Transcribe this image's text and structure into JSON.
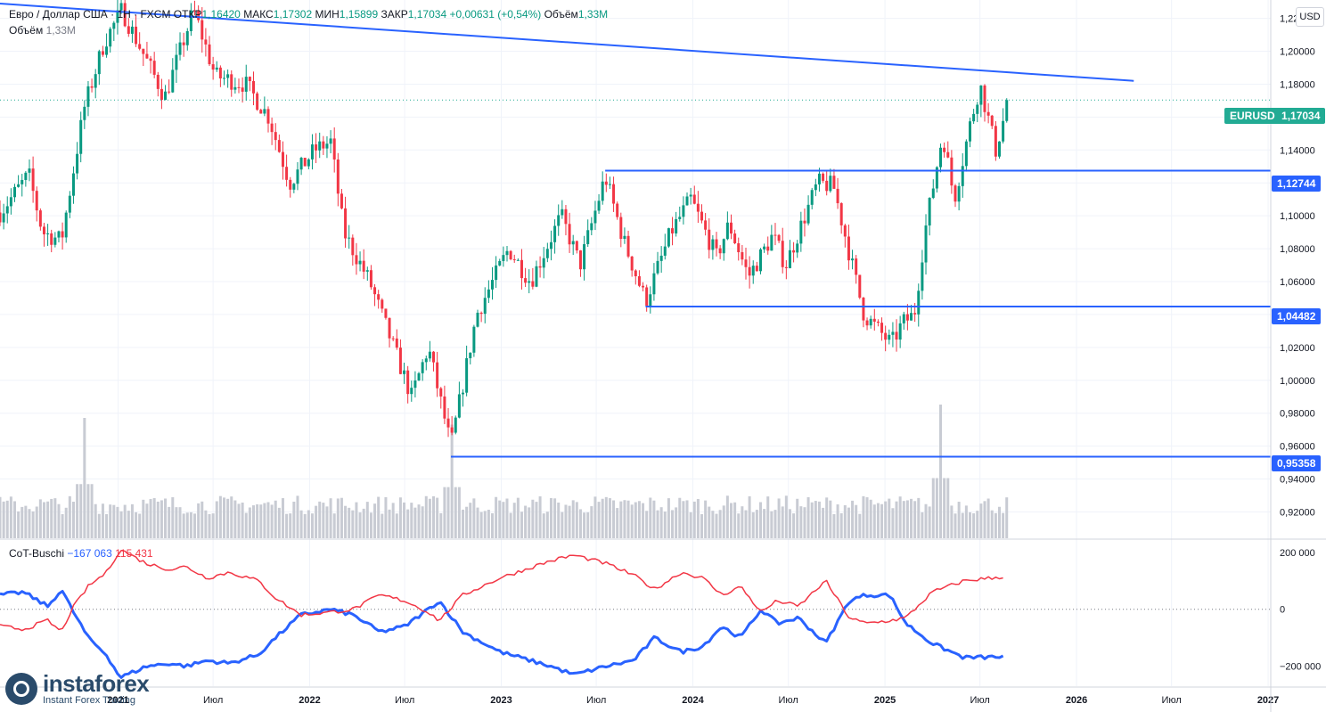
{
  "header": {
    "pair": "Евро / Доллар США",
    "timeframe": "1Н",
    "exchange": "FXCM",
    "open_label": "ОТКР",
    "open": "1,16420",
    "high_label": "МАКС",
    "high": "1,17302",
    "low_label": "МИН",
    "low": "1,15899",
    "close_label": "ЗАКР",
    "close": "1,17034",
    "change": "+0,00631 (+0,54%)",
    "volume_label": "Объём",
    "volume": "1,33M"
  },
  "volume_legend": {
    "label": "Объём",
    "value": "1,33M"
  },
  "currency_button": "USD",
  "cot_legend": {
    "name": "CoT-Buschi",
    "blue_value": "−167 063",
    "red_value": "115 431"
  },
  "price_tags": {
    "symbol": "EURUSD",
    "current": "1,17034",
    "levels": [
      "1,12744",
      "1,04482",
      "0,95358"
    ]
  },
  "branding": {
    "name": "instaforex",
    "tagline": "Instant Forex Trading"
  },
  "colors": {
    "up": "#089981",
    "down": "#f23645",
    "level": "#2962ff",
    "cot_blue": "#2962ff",
    "cot_red": "#f23645",
    "volume": "#c8cbd3",
    "current_tag": "#22ab94"
  },
  "chart_data": [
    {
      "type": "candlestick",
      "title": "Евро / Доллар США · 1Н · FXCM",
      "y_axis_ticks": [
        "1,22000",
        "1,20000",
        "1,18000",
        "1,16000",
        "1,14000",
        "1,12000",
        "1,10000",
        "1,08000",
        "1,06000",
        "1,04000",
        "1,02000",
        "1,00000",
        "0,98000",
        "0,96000",
        "0,94000",
        "0,92000"
      ],
      "ylim": [
        0.904,
        1.229
      ],
      "x_axis_labels": [
        "2021",
        "Июл",
        "2022",
        "Июл",
        "2023",
        "Июл",
        "2024",
        "Июл",
        "2025",
        "Июл",
        "2026",
        "Июл",
        "2027"
      ],
      "x_axis_dates": [
        "2021-01-01",
        "2021-07-01",
        "2022-01-01",
        "2022-07-01",
        "2023-01-01",
        "2023-07-01",
        "2024-01-01",
        "2024-07-01",
        "2025-01-01",
        "2025-07-01",
        "2026-01-01",
        "2026-07-01",
        "2027-01-01"
      ],
      "xlim": [
        "2020-05-21",
        "2027-01-06"
      ],
      "path_points": [
        [
          "2020-05-21",
          1.102
        ],
        [
          "2020-07-15",
          1.125
        ],
        [
          "2020-08-10",
          1.09
        ],
        [
          "2020-09-15",
          1.085
        ],
        [
          "2020-10-28",
          1.165
        ],
        [
          "2020-12-05",
          1.205
        ],
        [
          "2021-01-08",
          1.225
        ],
        [
          "2021-03-31",
          1.172
        ],
        [
          "2021-05-25",
          1.225
        ],
        [
          "2021-07-05",
          1.185
        ],
        [
          "2021-09-01",
          1.18
        ],
        [
          "2021-10-15",
          1.16
        ],
        [
          "2021-11-24",
          1.12
        ],
        [
          "2022-01-10",
          1.14
        ],
        [
          "2022-02-10",
          1.145
        ],
        [
          "2022-03-07",
          1.09
        ],
        [
          "2022-04-25",
          1.06
        ],
        [
          "2022-07-14",
          0.99
        ],
        [
          "2022-08-15",
          1.02
        ],
        [
          "2022-09-27",
          0.96
        ],
        [
          "2022-11-15",
          1.04
        ],
        [
          "2023-01-15",
          1.08
        ],
        [
          "2023-02-26",
          1.06
        ],
        [
          "2023-04-25",
          1.1
        ],
        [
          "2023-05-31",
          1.07
        ],
        [
          "2023-07-18",
          1.124
        ],
        [
          "2023-08-22",
          1.085
        ],
        [
          "2023-10-03",
          1.048
        ],
        [
          "2023-11-20",
          1.09
        ],
        [
          "2023-12-28",
          1.11
        ],
        [
          "2024-02-15",
          1.075
        ],
        [
          "2024-03-10",
          1.095
        ],
        [
          "2024-04-16",
          1.063
        ],
        [
          "2024-06-01",
          1.088
        ],
        [
          "2024-06-26",
          1.07
        ],
        [
          "2024-08-26",
          1.12
        ],
        [
          "2024-09-25",
          1.118
        ],
        [
          "2024-10-23",
          1.08
        ],
        [
          "2024-11-22",
          1.04
        ],
        [
          "2025-01-13",
          1.022
        ],
        [
          "2025-02-04",
          1.035
        ],
        [
          "2025-02-26",
          1.04
        ],
        [
          "2025-03-18",
          1.09
        ],
        [
          "2025-04-21",
          1.15
        ],
        [
          "2025-05-13",
          1.11
        ],
        [
          "2025-06-12",
          1.155
        ],
        [
          "2025-07-01",
          1.18
        ],
        [
          "2025-07-31",
          1.14
        ],
        [
          "2025-08-24",
          1.17
        ]
      ],
      "horizontal_levels": [
        {
          "value": 1.12744,
          "from": "2023-07-18"
        },
        {
          "value": 1.04482,
          "from": "2023-10-03"
        },
        {
          "value": 0.95358,
          "from": "2022-09-27"
        }
      ],
      "trend_line": [
        [
          "2020-05-21",
          1.229
        ],
        [
          "2026-04-20",
          1.182
        ]
      ],
      "current_price": 1.17034
    },
    {
      "type": "bar",
      "title": "Объём",
      "volume_spikes": [
        [
          "2020-10-28",
          0.9
        ],
        [
          "2022-09-27",
          0.85
        ],
        [
          "2025-04-15",
          1.0
        ]
      ]
    },
    {
      "type": "line",
      "title": "CoT-Buschi",
      "y_axis_ticks": [
        "200 000",
        "0",
        "−200 000"
      ],
      "ylim": [
        -270000,
        240000
      ],
      "series": [
        {
          "name": "−167 063",
          "color": "#2962ff",
          "points": [
            [
              "2020-05-21",
              50000
            ],
            [
              "2020-07-05",
              60000
            ],
            [
              "2020-08-20",
              10000
            ],
            [
              "2020-09-15",
              70000
            ],
            [
              "2020-10-05",
              0
            ],
            [
              "2020-11-05",
              -100000
            ],
            [
              "2020-12-10",
              -160000
            ],
            [
              "2021-01-05",
              -240000
            ],
            [
              "2021-02-25",
              -200000
            ],
            [
              "2021-04-10",
              -190000
            ],
            [
              "2021-05-10",
              -200000
            ],
            [
              "2021-06-20",
              -180000
            ],
            [
              "2021-08-01",
              -190000
            ],
            [
              "2021-09-25",
              -160000
            ],
            [
              "2021-10-28",
              -100000
            ],
            [
              "2021-12-15",
              -20000
            ],
            [
              "2022-02-10",
              0
            ],
            [
              "2022-03-25",
              -20000
            ],
            [
              "2022-05-15",
              -80000
            ],
            [
              "2022-07-01",
              -60000
            ],
            [
              "2022-08-15",
              0
            ],
            [
              "2022-09-05",
              30000
            ],
            [
              "2022-10-20",
              -80000
            ],
            [
              "2022-12-30",
              -150000
            ],
            [
              "2023-04-05",
              -200000
            ],
            [
              "2023-05-20",
              -230000
            ],
            [
              "2023-07-20",
              -200000
            ],
            [
              "2023-09-10",
              -180000
            ],
            [
              "2023-10-20",
              -100000
            ],
            [
              "2023-12-10",
              -150000
            ],
            [
              "2024-01-20",
              -130000
            ],
            [
              "2024-02-25",
              -60000
            ],
            [
              "2024-04-01",
              -100000
            ],
            [
              "2024-05-10",
              0
            ],
            [
              "2024-06-10",
              -50000
            ],
            [
              "2024-07-20",
              -30000
            ],
            [
              "2024-09-10",
              -120000
            ],
            [
              "2024-10-25",
              30000
            ],
            [
              "2024-11-25",
              50000
            ],
            [
              "2025-01-10",
              50000
            ],
            [
              "2025-02-10",
              -50000
            ],
            [
              "2025-04-01",
              -120000
            ],
            [
              "2025-06-01",
              -170000
            ],
            [
              "2025-08-20",
              -167063
            ]
          ]
        },
        {
          "name": "115 431",
          "color": "#f23645",
          "points": [
            [
              "2020-05-21",
              -60000
            ],
            [
              "2020-07-05",
              -70000
            ],
            [
              "2020-08-20",
              -40000
            ],
            [
              "2020-09-15",
              -80000
            ],
            [
              "2020-10-05",
              0
            ],
            [
              "2020-11-05",
              80000
            ],
            [
              "2020-12-10",
              130000
            ],
            [
              "2021-01-05",
              210000
            ],
            [
              "2021-02-25",
              160000
            ],
            [
              "2021-04-10",
              140000
            ],
            [
              "2021-05-10",
              150000
            ],
            [
              "2021-06-20",
              110000
            ],
            [
              "2021-08-01",
              130000
            ],
            [
              "2021-09-25",
              100000
            ],
            [
              "2021-10-28",
              40000
            ],
            [
              "2021-12-15",
              -20000
            ],
            [
              "2022-02-10",
              -10000
            ],
            [
              "2022-03-25",
              0
            ],
            [
              "2022-05-15",
              50000
            ],
            [
              "2022-07-01",
              30000
            ],
            [
              "2022-08-15",
              -10000
            ],
            [
              "2022-09-05",
              -40000
            ],
            [
              "2022-10-20",
              50000
            ],
            [
              "2022-12-30",
              110000
            ],
            [
              "2023-04-05",
              170000
            ],
            [
              "2023-05-20",
              190000
            ],
            [
              "2023-07-20",
              160000
            ],
            [
              "2023-09-10",
              120000
            ],
            [
              "2023-10-20",
              70000
            ],
            [
              "2023-12-10",
              130000
            ],
            [
              "2024-01-20",
              110000
            ],
            [
              "2024-02-25",
              50000
            ],
            [
              "2024-04-01",
              80000
            ],
            [
              "2024-05-10",
              -10000
            ],
            [
              "2024-06-10",
              30000
            ],
            [
              "2024-07-20",
              10000
            ],
            [
              "2024-09-10",
              100000
            ],
            [
              "2024-10-25",
              -30000
            ],
            [
              "2024-11-25",
              -50000
            ],
            [
              "2025-01-10",
              -40000
            ],
            [
              "2025-02-10",
              -30000
            ],
            [
              "2025-04-01",
              60000
            ],
            [
              "2025-06-01",
              100000
            ],
            [
              "2025-08-20",
              115431
            ]
          ]
        }
      ]
    }
  ]
}
